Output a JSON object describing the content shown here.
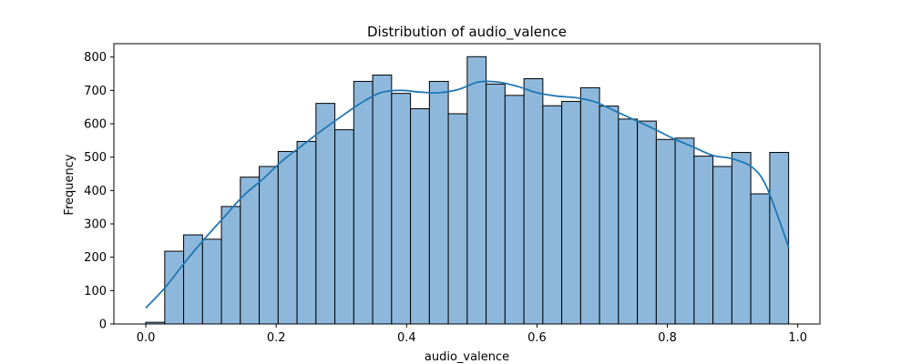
{
  "chart_data": {
    "type": "bar",
    "title": "Distribution of audio_valence",
    "xlabel": "audio_valence",
    "ylabel": "Frequency",
    "xlim": [
      -0.049,
      1.034
    ],
    "ylim": [
      0,
      840
    ],
    "xticks": [
      0.0,
      0.2,
      0.4,
      0.6,
      0.8,
      1.0
    ],
    "xtick_labels": [
      "0.0",
      "0.2",
      "0.4",
      "0.6",
      "0.8",
      "1.0"
    ],
    "yticks": [
      0,
      100,
      200,
      300,
      400,
      500,
      600,
      700,
      800
    ],
    "ytick_labels": [
      "0",
      "100",
      "200",
      "300",
      "400",
      "500",
      "600",
      "700",
      "800"
    ],
    "bins": {
      "edges": [
        0.0,
        0.029,
        0.058,
        0.087,
        0.116,
        0.145,
        0.174,
        0.203,
        0.232,
        0.261,
        0.29,
        0.319,
        0.348,
        0.377,
        0.406,
        0.435,
        0.464,
        0.493,
        0.522,
        0.551,
        0.58,
        0.609,
        0.638,
        0.667,
        0.696,
        0.725,
        0.754,
        0.783,
        0.812,
        0.841,
        0.87,
        0.899,
        0.928,
        0.957,
        0.986
      ],
      "counts": [
        5,
        218,
        267,
        254,
        352,
        440,
        472,
        517,
        547,
        661,
        582,
        727,
        746,
        691,
        645,
        727,
        630,
        801,
        719,
        685,
        735,
        654,
        667,
        708,
        653,
        614,
        608,
        553,
        557,
        503,
        472,
        514,
        390,
        514
      ]
    },
    "kde": {
      "x": [
        0.0,
        0.03,
        0.06,
        0.09,
        0.12,
        0.15,
        0.18,
        0.21,
        0.24,
        0.27,
        0.3,
        0.33,
        0.36,
        0.39,
        0.42,
        0.45,
        0.48,
        0.51,
        0.54,
        0.57,
        0.6,
        0.63,
        0.66,
        0.69,
        0.72,
        0.75,
        0.78,
        0.81,
        0.84,
        0.87,
        0.9,
        0.93,
        0.95,
        0.97,
        0.986
      ],
      "y": [
        48,
        110,
        185,
        255,
        320,
        385,
        435,
        490,
        535,
        580,
        622,
        662,
        693,
        700,
        695,
        693,
        703,
        725,
        725,
        712,
        693,
        683,
        678,
        665,
        638,
        611,
        584,
        555,
        530,
        505,
        495,
        470,
        420,
        320,
        230
      ]
    },
    "bar_fill": "#8db8dc",
    "bar_edge": "#000000",
    "kde_color": "#1f77b4",
    "grid": false,
    "legend": "none"
  }
}
